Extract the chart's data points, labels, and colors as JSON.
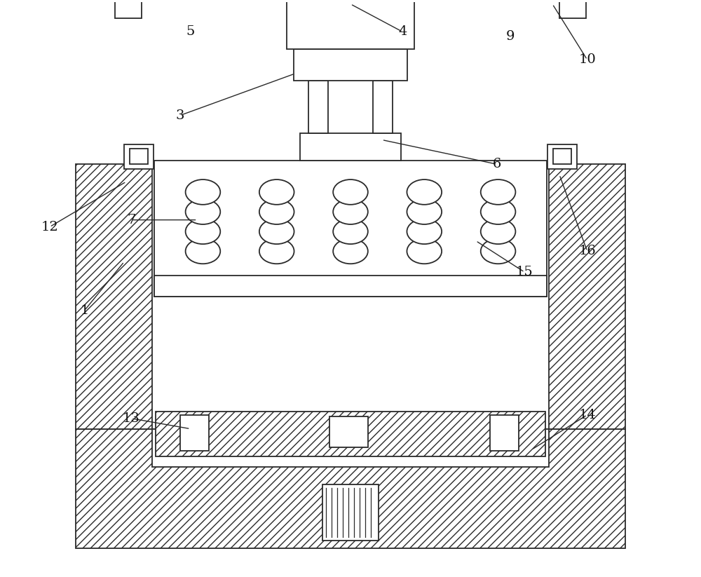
{
  "bg_color": "#ffffff",
  "lc": "#2a2a2a",
  "lw": 1.3,
  "fig_w": 10.0,
  "fig_h": 8.23
}
